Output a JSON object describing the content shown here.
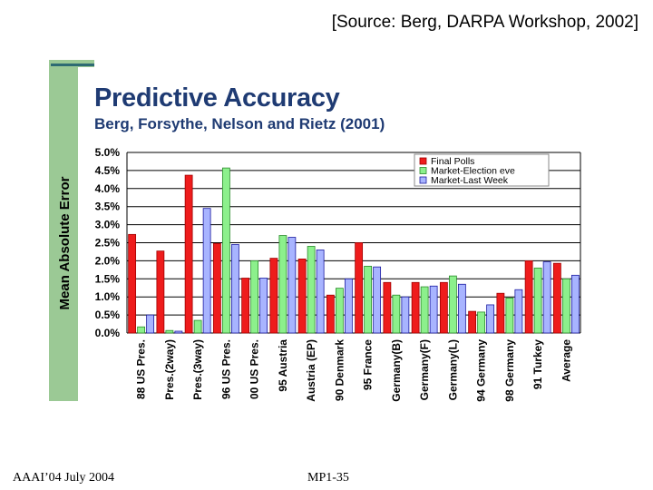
{
  "source": "[Source: Berg, DARPA Workshop, 2002]",
  "slide": {
    "title": "Predictive Accuracy",
    "subtitle": "Berg, Forsythe, Nelson and Rietz (2001)"
  },
  "footer": {
    "left": "AAAI’04 July 2004",
    "center": "MP1-35"
  },
  "colors": {
    "red": "#ee1c1c",
    "green": "#8cf08c",
    "blue": "#a8b4ff",
    "blueStroke": "#1a1aa0"
  },
  "chart_data": {
    "type": "bar",
    "ylabel": "Mean Absolute Error",
    "ylim": [
      0,
      5
    ],
    "yticks": [
      "0.0%",
      "0.5%",
      "1.0%",
      "1.5%",
      "2.0%",
      "2.5%",
      "3.0%",
      "3.5%",
      "4.0%",
      "4.5%",
      "5.0%"
    ],
    "grid": true,
    "legend": "top-right",
    "categories": [
      "88 US Pres.",
      "Pres.(2way)",
      "Pres.(3way)",
      "96 US Pres.",
      "00 US Pres.",
      "95 Austria",
      "Austria (EP)",
      "90 Denmark",
      "95 France",
      "Germany(B)",
      "Germany(F)",
      "Germany(L)",
      "94 Germany",
      "98 Germany",
      "91 Turkey",
      "Average"
    ],
    "series": [
      {
        "name": "Final Polls",
        "values": [
          2.73,
          2.27,
          4.37,
          2.48,
          1.52,
          2.07,
          2.05,
          1.05,
          2.5,
          1.4,
          1.4,
          1.4,
          0.6,
          1.1,
          2.0,
          1.93
        ]
      },
      {
        "name": "Market-Election eve",
        "values": [
          0.17,
          0.07,
          0.35,
          4.57,
          2.0,
          2.7,
          2.4,
          1.24,
          1.85,
          1.05,
          1.28,
          1.58,
          0.58,
          0.97,
          1.8,
          1.5
        ]
      },
      {
        "name": "Market-Last Week",
        "values": [
          0.5,
          0.05,
          3.45,
          2.45,
          1.52,
          2.65,
          2.3,
          1.5,
          1.83,
          1.0,
          1.3,
          1.35,
          0.78,
          1.2,
          1.97,
          1.6
        ]
      }
    ]
  }
}
